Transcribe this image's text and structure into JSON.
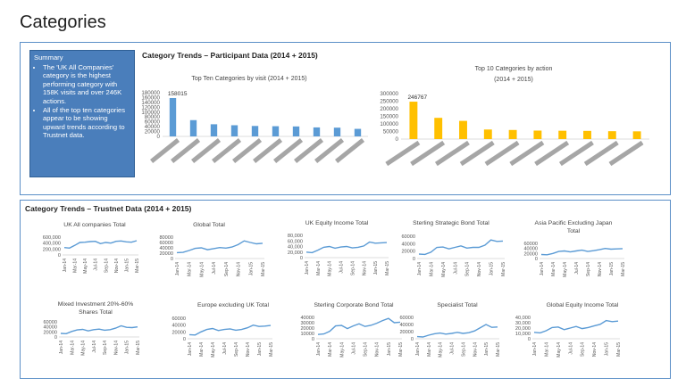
{
  "page": {
    "title": "Categories"
  },
  "summary": {
    "heading": "Summary",
    "points": [
      "The 'UK All Companies' category is the highest performing category with 158K visits and over 246K actions.",
      "All of the top ten categories appear to be showing upward trends according to Trustnet data."
    ]
  },
  "participant_section": {
    "title": "Category Trends – Participant Data (2014 + 2015)"
  },
  "trustnet_section": {
    "title": "Category Trends – Trustnet Data (2014 + 2015)"
  },
  "colors": {
    "visit_bar": "#5b9bd5",
    "action_bar": "#ffc000",
    "line": "#5b9bd5",
    "border": "#5b8fc7",
    "summary_bg": "#4a7ebb"
  },
  "chart_data": [
    {
      "id": "visits",
      "type": "bar",
      "title": "Top Ten Categories by visit (2014 + 2015)",
      "categories": [
        "",
        "",
        "",
        "",
        "",
        "",
        "",
        "",
        "",
        ""
      ],
      "values": [
        158015,
        67000,
        50000,
        46000,
        43000,
        42000,
        41000,
        37000,
        36000,
        31000
      ],
      "data_labels": [
        "158015",
        "",
        "",
        "",
        "",
        "",
        "",
        "",
        "",
        ""
      ],
      "ylim": [
        0,
        180000
      ],
      "yticks": [
        "0",
        "20000",
        "40000",
        "60000",
        "80000",
        "100000",
        "120000",
        "140000",
        "160000",
        "180000"
      ],
      "color": "#5b9bd5"
    },
    {
      "id": "actions",
      "type": "bar",
      "title": "Top 10 Categories by action",
      "subtitle": "(2014 + 2015)",
      "categories": [
        "",
        "",
        "",
        "",
        "",
        "",
        "",
        "",
        "",
        ""
      ],
      "values": [
        246767,
        140000,
        120000,
        63000,
        60000,
        56000,
        55000,
        54000,
        52000,
        51000
      ],
      "data_labels": [
        "246767",
        "",
        "",
        "",
        "",
        "",
        "",
        "",
        "",
        ""
      ],
      "ylim": [
        0,
        300000
      ],
      "yticks": [
        "0",
        "50000",
        "100000",
        "150000",
        "200000",
        "250000",
        "300000"
      ],
      "color": "#ffc000"
    },
    {
      "id": "uk-all-companies",
      "type": "line",
      "title": "UK All companies Total",
      "x": [
        "Jan-14",
        "Feb-14",
        "Mar-14",
        "Apr-14",
        "May-14",
        "Jun-14",
        "Jul-14",
        "Aug-14",
        "Sep-14",
        "Oct-14",
        "Nov-14",
        "Dec-14",
        "Jan-15",
        "Feb-15",
        "Mar-15"
      ],
      "xticks": [
        "Jan-14",
        "Mar-14",
        "May-14",
        "Jul-14",
        "Sep-14",
        "Nov-14",
        "Jan-15",
        "Mar-15"
      ],
      "values": [
        250000,
        230000,
        320000,
        420000,
        430000,
        450000,
        460000,
        380000,
        420000,
        400000,
        460000,
        470000,
        440000,
        430000,
        480000
      ],
      "ylim": [
        0,
        600000
      ],
      "yticks": [
        "0",
        "200,000",
        "400,000",
        "600,000"
      ]
    },
    {
      "id": "global",
      "type": "line",
      "title": "Global Total",
      "x": [
        "Jan-14",
        "Feb-14",
        "Mar-14",
        "Apr-14",
        "May-14",
        "Jun-14",
        "Jul-14",
        "Aug-14",
        "Sep-14",
        "Oct-14",
        "Nov-14",
        "Dec-14",
        "Jan-15",
        "Feb-15",
        "Mar-15"
      ],
      "xticks": [
        "Jan-14",
        "Mar-14",
        "May-14",
        "Jul-14",
        "Sep-14",
        "Nov-14",
        "Jan-15",
        "Mar-15"
      ],
      "values": [
        22000,
        23000,
        30000,
        38000,
        40000,
        33000,
        37000,
        41000,
        39000,
        43000,
        52000,
        66000,
        60000,
        55000,
        57000
      ],
      "ylim": [
        0,
        80000
      ],
      "yticks": [
        "0",
        "20000",
        "40000",
        "60000",
        "80000"
      ]
    },
    {
      "id": "uk-equity-income",
      "type": "line",
      "title": "UK Equity Income Total",
      "x": [
        "Jan-14",
        "Feb-14",
        "Mar-14",
        "Apr-14",
        "May-14",
        "Jun-14",
        "Jul-14",
        "Aug-14",
        "Sep-14",
        "Oct-14",
        "Nov-14",
        "Dec-14",
        "Jan-15",
        "Feb-15",
        "Mar-15"
      ],
      "xticks": [
        "Jan-14",
        "Mar-14",
        "May-14",
        "Jul-14",
        "Sep-14",
        "Nov-14",
        "Jan-15",
        "Mar-15"
      ],
      "values": [
        20000,
        18000,
        27000,
        37000,
        40000,
        34000,
        38000,
        40000,
        35000,
        37000,
        42000,
        56000,
        52000,
        53000,
        54000
      ],
      "ylim": [
        0,
        80000
      ],
      "yticks": [
        "0",
        "20,000",
        "40,000",
        "60,000",
        "80,000"
      ]
    },
    {
      "id": "sterling-strategic-bond",
      "type": "line",
      "title": "Sterling Strategic Bond Total",
      "x": [
        "Jan-14",
        "Feb-14",
        "Mar-14",
        "Apr-14",
        "May-14",
        "Jun-14",
        "Jul-14",
        "Aug-14",
        "Sep-14",
        "Oct-14",
        "Nov-14",
        "Dec-14",
        "Jan-15",
        "Feb-15",
        "Mar-15"
      ],
      "xticks": [
        "Jan-14",
        "Mar-14",
        "May-14",
        "Jul-14",
        "Sep-14",
        "Nov-14",
        "Jan-15",
        "Mar-15"
      ],
      "values": [
        12000,
        11000,
        17000,
        30000,
        31000,
        26000,
        30000,
        34000,
        28000,
        30000,
        30000,
        36000,
        50000,
        46000,
        47000
      ],
      "ylim": [
        0,
        60000
      ],
      "yticks": [
        "0",
        "20000",
        "40000",
        "60000"
      ]
    },
    {
      "id": "asia-pacific-ex-japan",
      "type": "line",
      "title": "Asia Pacific Excluding Japan",
      "subtitle": "Total",
      "x": [
        "Jan-14",
        "Feb-14",
        "Mar-14",
        "Apr-14",
        "May-14",
        "Jun-14",
        "Jul-14",
        "Aug-14",
        "Sep-14",
        "Oct-14",
        "Nov-14",
        "Dec-14",
        "Jan-15",
        "Feb-15",
        "Mar-15"
      ],
      "xticks": [
        "Jan-14",
        "Mar-14",
        "May-14",
        "Jul-14",
        "Sep-14",
        "Nov-14",
        "Jan-15",
        "Mar-15"
      ],
      "values": [
        16000,
        15000,
        20000,
        28000,
        30000,
        26000,
        30000,
        33000,
        28000,
        31000,
        35000,
        40000,
        37000,
        38000,
        39000
      ],
      "ylim": [
        0,
        60000
      ],
      "yticks": [
        "0",
        "20000",
        "40000",
        "60000"
      ]
    },
    {
      "id": "mixed-investment",
      "type": "line",
      "title": "Mixed Investment 20%-60%",
      "subtitle": "Shares Total",
      "x": [
        "Jan-14",
        "Feb-14",
        "Mar-14",
        "Apr-14",
        "May-14",
        "Jun-14",
        "Jul-14",
        "Aug-14",
        "Sep-14",
        "Oct-14",
        "Nov-14",
        "Dec-14",
        "Jan-15",
        "Feb-15",
        "Mar-15"
      ],
      "xticks": [
        "Jan-14",
        "Mar-14",
        "May-14",
        "Jul-14",
        "Sep-14",
        "Nov-14",
        "Jan-15",
        "Mar-15"
      ],
      "values": [
        14000,
        13000,
        22000,
        28000,
        30000,
        24000,
        29000,
        31000,
        27000,
        29000,
        35000,
        44000,
        38000,
        37000,
        40000
      ],
      "ylim": [
        0,
        60000
      ],
      "yticks": [
        "0",
        "20000",
        "40000",
        "60000"
      ]
    },
    {
      "id": "europe-ex-uk",
      "type": "line",
      "title": "Europe excluding UK Total",
      "x": [
        "Jan-14",
        "Feb-14",
        "Mar-14",
        "Apr-14",
        "May-14",
        "Jun-14",
        "Jul-14",
        "Aug-14",
        "Sep-14",
        "Oct-14",
        "Nov-14",
        "Dec-14",
        "Jan-15",
        "Feb-15",
        "Mar-15"
      ],
      "xticks": [
        "Jan-14",
        "Mar-14",
        "May-14",
        "Jul-14",
        "Sep-14",
        "Nov-14",
        "Jan-15",
        "Mar-15"
      ],
      "values": [
        12000,
        11000,
        20000,
        27000,
        30000,
        24000,
        27000,
        29000,
        25000,
        27000,
        32000,
        40000,
        36000,
        37000,
        39000
      ],
      "ylim": [
        0,
        60000
      ],
      "yticks": [
        "0",
        "20000",
        "40000",
        "60000"
      ]
    },
    {
      "id": "sterling-corporate-bond",
      "type": "line",
      "title": "Sterling Corporate Bond Total",
      "x": [
        "Jan-14",
        "Feb-14",
        "Mar-14",
        "Apr-14",
        "May-14",
        "Jun-14",
        "Jul-14",
        "Aug-14",
        "Sep-14",
        "Oct-14",
        "Nov-14",
        "Dec-14",
        "Jan-15",
        "Feb-15",
        "Mar-15"
      ],
      "xticks": [
        "Jan-14",
        "Mar-14",
        "May-14",
        "Jul-14",
        "Sep-14",
        "Nov-14",
        "Jan-15",
        "Mar-15"
      ],
      "values": [
        8000,
        9000,
        14000,
        24000,
        25000,
        19000,
        24000,
        28000,
        23000,
        25000,
        29000,
        34000,
        38000,
        30000,
        31000
      ],
      "ylim": [
        0,
        40000
      ],
      "yticks": [
        "0",
        "10000",
        "20000",
        "30000",
        "40000"
      ]
    },
    {
      "id": "specialist",
      "type": "line",
      "title": "Specialist Total",
      "x": [
        "Jan-14",
        "Feb-14",
        "Mar-14",
        "Apr-14",
        "May-14",
        "Jun-14",
        "Jul-14",
        "Aug-14",
        "Sep-14",
        "Oct-14",
        "Nov-14",
        "Dec-14",
        "Jan-15",
        "Feb-15",
        "Mar-15"
      ],
      "xticks": [
        "Jan-14",
        "Mar-14",
        "May-14",
        "Jul-14",
        "Sep-14",
        "Nov-14",
        "Jan-15",
        "Mar-15"
      ],
      "values": [
        6000,
        5000,
        10000,
        14000,
        16000,
        13000,
        15000,
        18000,
        15000,
        17000,
        22000,
        31000,
        40000,
        32000,
        33000
      ],
      "ylim": [
        0,
        60000
      ],
      "yticks": [
        "0",
        "20000",
        "40000",
        "60000"
      ]
    },
    {
      "id": "global-equity-income",
      "type": "line",
      "title": "Global Equity Income Total",
      "x": [
        "Jan-14",
        "Feb-14",
        "Mar-14",
        "Apr-14",
        "May-14",
        "Jun-14",
        "Jul-14",
        "Aug-14",
        "Sep-14",
        "Oct-14",
        "Nov-14",
        "Dec-14",
        "Jan-15",
        "Feb-15",
        "Mar-15"
      ],
      "xticks": [
        "Jan-14",
        "Mar-14",
        "May-14",
        "Jul-14",
        "Sep-14",
        "Nov-14",
        "Jan-15",
        "Mar-15"
      ],
      "values": [
        12000,
        11000,
        15000,
        21000,
        22000,
        17000,
        20000,
        23000,
        19000,
        21000,
        24000,
        27000,
        34000,
        32000,
        33000
      ],
      "ylim": [
        0,
        40000
      ],
      "yticks": [
        "0",
        "10,000",
        "20,000",
        "30,000",
        "40,000"
      ]
    }
  ]
}
